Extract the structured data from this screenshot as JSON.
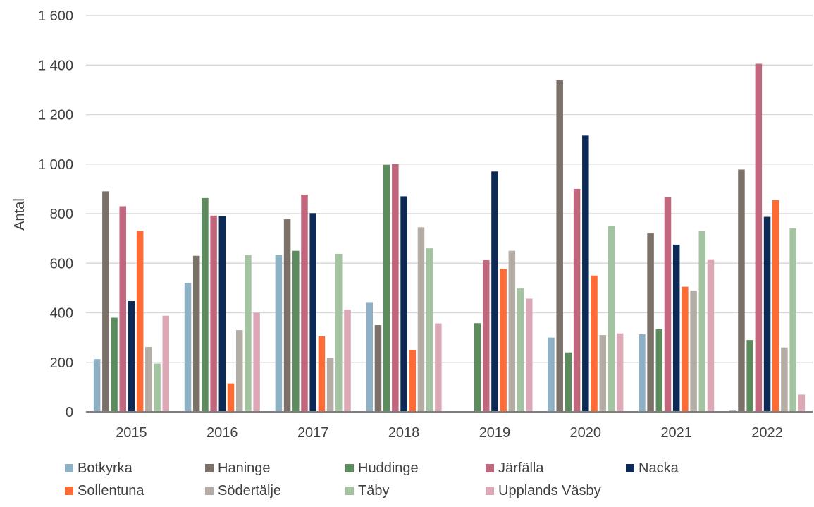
{
  "chart_data": {
    "type": "bar",
    "title": "",
    "xlabel": "",
    "ylabel": "Antal",
    "ylim": [
      0,
      1600
    ],
    "yticks": [
      0,
      200,
      400,
      600,
      800,
      1000,
      1200,
      1400,
      1600
    ],
    "ytick_labels": [
      "0",
      "200",
      "400",
      "600",
      "800",
      "1 000",
      "1 200",
      "1 400",
      "1 600"
    ],
    "grid": true,
    "legend_position": "bottom",
    "categories": [
      "2015",
      "2016",
      "2017",
      "2018",
      "2019",
      "2020",
      "2021",
      "2022"
    ],
    "series": [
      {
        "name": "Botkyrka",
        "color": "#8eb0c4",
        "values": [
          213,
          520,
          633,
          443,
          0,
          300,
          313,
          5
        ]
      },
      {
        "name": "Haninge",
        "color": "#7b7168",
        "values": [
          890,
          630,
          777,
          350,
          0,
          1338,
          720,
          978
        ]
      },
      {
        "name": "Huddinge",
        "color": "#5c8b5e",
        "values": [
          380,
          863,
          650,
          997,
          358,
          240,
          333,
          290
        ]
      },
      {
        "name": "Järfälla",
        "color": "#c0677e",
        "values": [
          830,
          792,
          877,
          1000,
          612,
          900,
          866,
          1405
        ]
      },
      {
        "name": "Nacka",
        "color": "#0c2a55",
        "values": [
          447,
          790,
          802,
          870,
          970,
          1115,
          675,
          787
        ]
      },
      {
        "name": "Sollentuna",
        "color": "#ff6b35",
        "values": [
          730,
          115,
          305,
          250,
          577,
          550,
          505,
          855
        ]
      },
      {
        "name": "Södertälje",
        "color": "#b3ada6",
        "values": [
          262,
          330,
          218,
          745,
          650,
          310,
          490,
          260
        ]
      },
      {
        "name": "Täby",
        "color": "#a3c3a1",
        "values": [
          195,
          633,
          638,
          660,
          498,
          750,
          730,
          740
        ]
      },
      {
        "name": "Upplands Väsby",
        "color": "#dca8b6",
        "values": [
          388,
          400,
          413,
          357,
          457,
          317,
          613,
          70
        ]
      }
    ]
  }
}
